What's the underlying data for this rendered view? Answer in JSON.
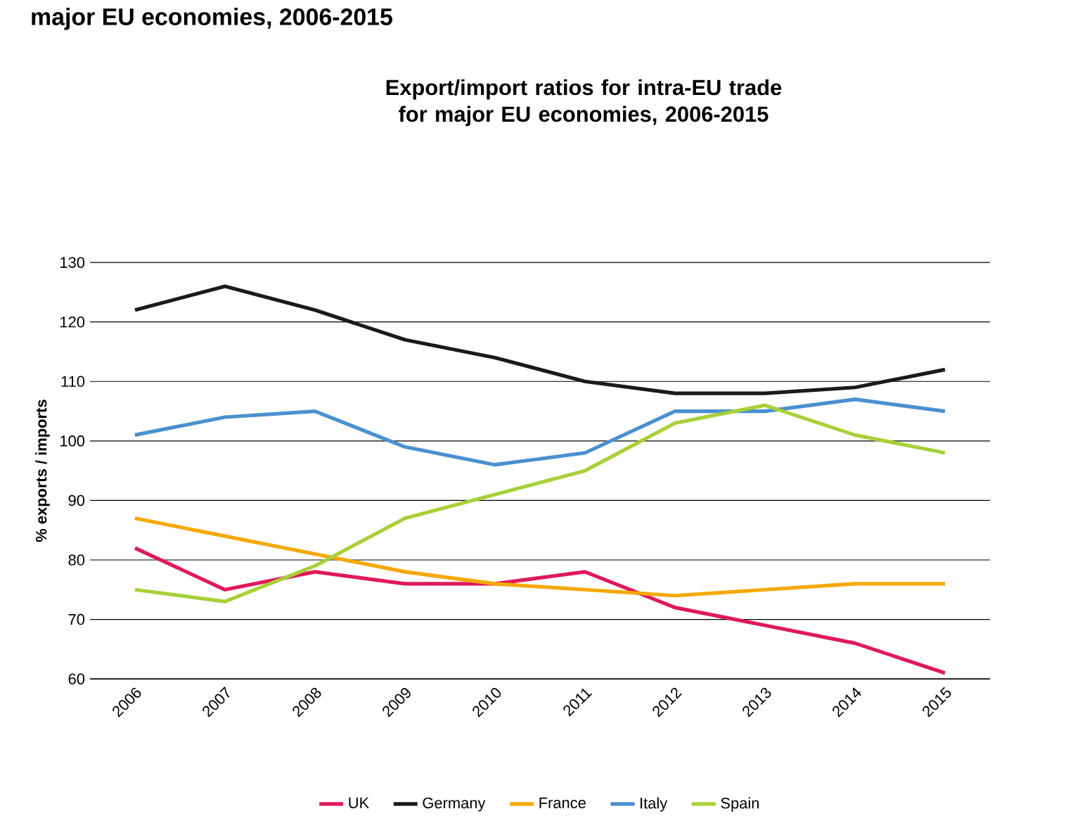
{
  "chart_data": {
    "type": "line",
    "title": "Export/import ratios for intra-EU trade for major EU economies, 2006-2015",
    "annotations": [
      "major EU economies, 2006-2015"
    ],
    "ylabel": "% exports / imports",
    "categories": [
      "2006",
      "2007",
      "2008",
      "2009",
      "2010",
      "2011",
      "2012",
      "2013",
      "2014",
      "2015"
    ],
    "series": [
      {
        "name": "UK",
        "color": "#e0195a",
        "values": [
          82,
          75,
          78,
          76,
          76,
          78,
          72,
          69,
          66,
          61
        ]
      },
      {
        "name": "Germany",
        "color": "#1a1a1a",
        "values": [
          122,
          126,
          122,
          117,
          114,
          110,
          108,
          108,
          109,
          112
        ]
      },
      {
        "name": "France",
        "color": "#f5a800",
        "values": [
          87,
          84,
          81,
          78,
          76,
          75,
          74,
          75,
          76,
          76
        ]
      },
      {
        "name": "Italy",
        "color": "#4a90d0",
        "values": [
          101,
          104,
          105,
          99,
          96,
          98,
          105,
          105,
          107,
          105
        ]
      },
      {
        "name": "Spain",
        "color": "#a8d038",
        "values": [
          75,
          73,
          79,
          87,
          91,
          95,
          103,
          106,
          101,
          98
        ]
      }
    ],
    "ylim": [
      60,
      130
    ],
    "yticks": [
      60,
      70,
      80,
      90,
      100,
      110,
      120,
      130
    ],
    "grid": "y",
    "legend": "bottom",
    "marker": "none",
    "line_style": "solid"
  }
}
